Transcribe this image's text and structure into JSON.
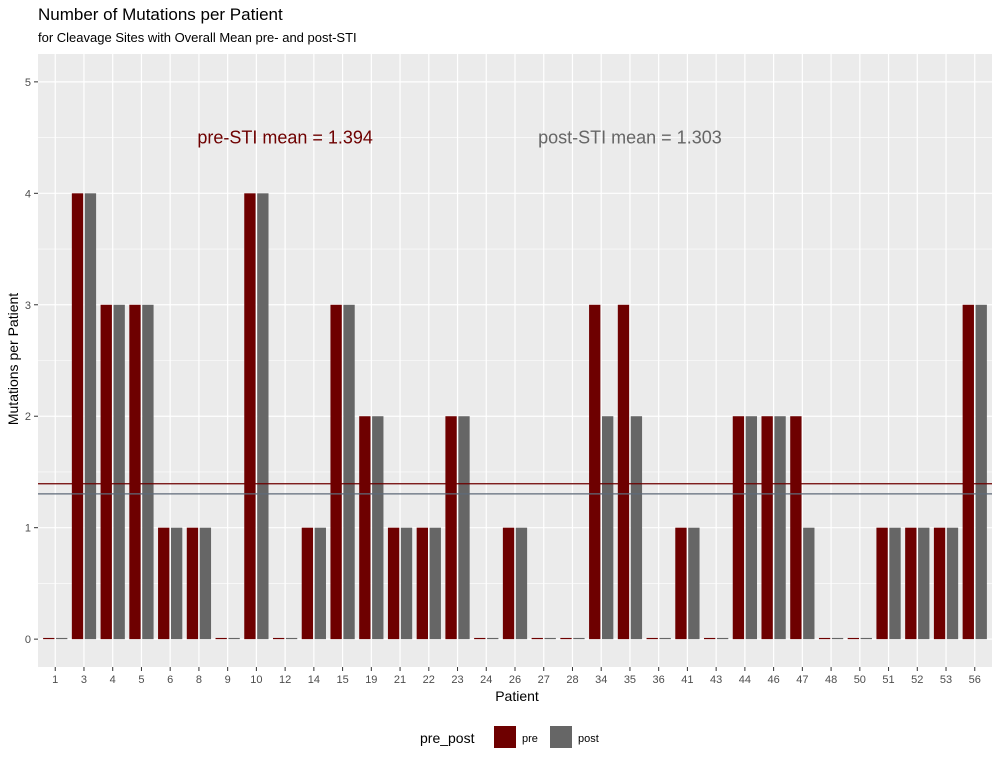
{
  "chart_data": {
    "type": "bar",
    "title": "Number of Mutations per Patient",
    "subtitle": "for Cleavage Sites with Overall Mean pre- and post-STI",
    "xlabel": "Patient",
    "ylabel": "Mutations per Patient",
    "ylim": [
      -0.25,
      5.25
    ],
    "yticks": [
      0,
      1,
      2,
      3,
      4,
      5
    ],
    "grid": true,
    "legend_placement": "bottom",
    "categories": [
      "1",
      "3",
      "4",
      "5",
      "6",
      "8",
      "9",
      "10",
      "12",
      "14",
      "15",
      "19",
      "21",
      "22",
      "23",
      "24",
      "26",
      "27",
      "28",
      "34",
      "35",
      "36",
      "41",
      "43",
      "44",
      "46",
      "47",
      "48",
      "50",
      "51",
      "52",
      "53",
      "56"
    ],
    "series": [
      {
        "name": "pre",
        "color": "#6e0000",
        "values": [
          0,
          4,
          3,
          3,
          1,
          1,
          0,
          4,
          0,
          1,
          3,
          2,
          1,
          1,
          2,
          0,
          1,
          0,
          0,
          3,
          3,
          0,
          1,
          0,
          2,
          2,
          2,
          0,
          0,
          1,
          1,
          1,
          3
        ]
      },
      {
        "name": "post",
        "color": "#666666",
        "values": [
          0,
          4,
          3,
          3,
          1,
          1,
          0,
          4,
          0,
          1,
          3,
          2,
          1,
          1,
          2,
          0,
          1,
          0,
          0,
          2,
          2,
          0,
          1,
          0,
          2,
          2,
          1,
          0,
          0,
          1,
          1,
          1,
          3
        ]
      }
    ],
    "reference_lines": [
      {
        "value": 1.394,
        "color": "#6e0000"
      },
      {
        "value": 1.303,
        "color": "#5f6b7a"
      }
    ],
    "annotations": [
      {
        "text": "pre-STI mean = 1.394",
        "x_category": "12",
        "y": 4.5,
        "color": "#6e0000"
      },
      {
        "text": "post-STI mean = 1.303",
        "x_category": "35",
        "y": 4.5,
        "color": "#666666"
      }
    ],
    "legend": {
      "title": "pre_post",
      "entries": [
        "pre",
        "post"
      ]
    }
  }
}
